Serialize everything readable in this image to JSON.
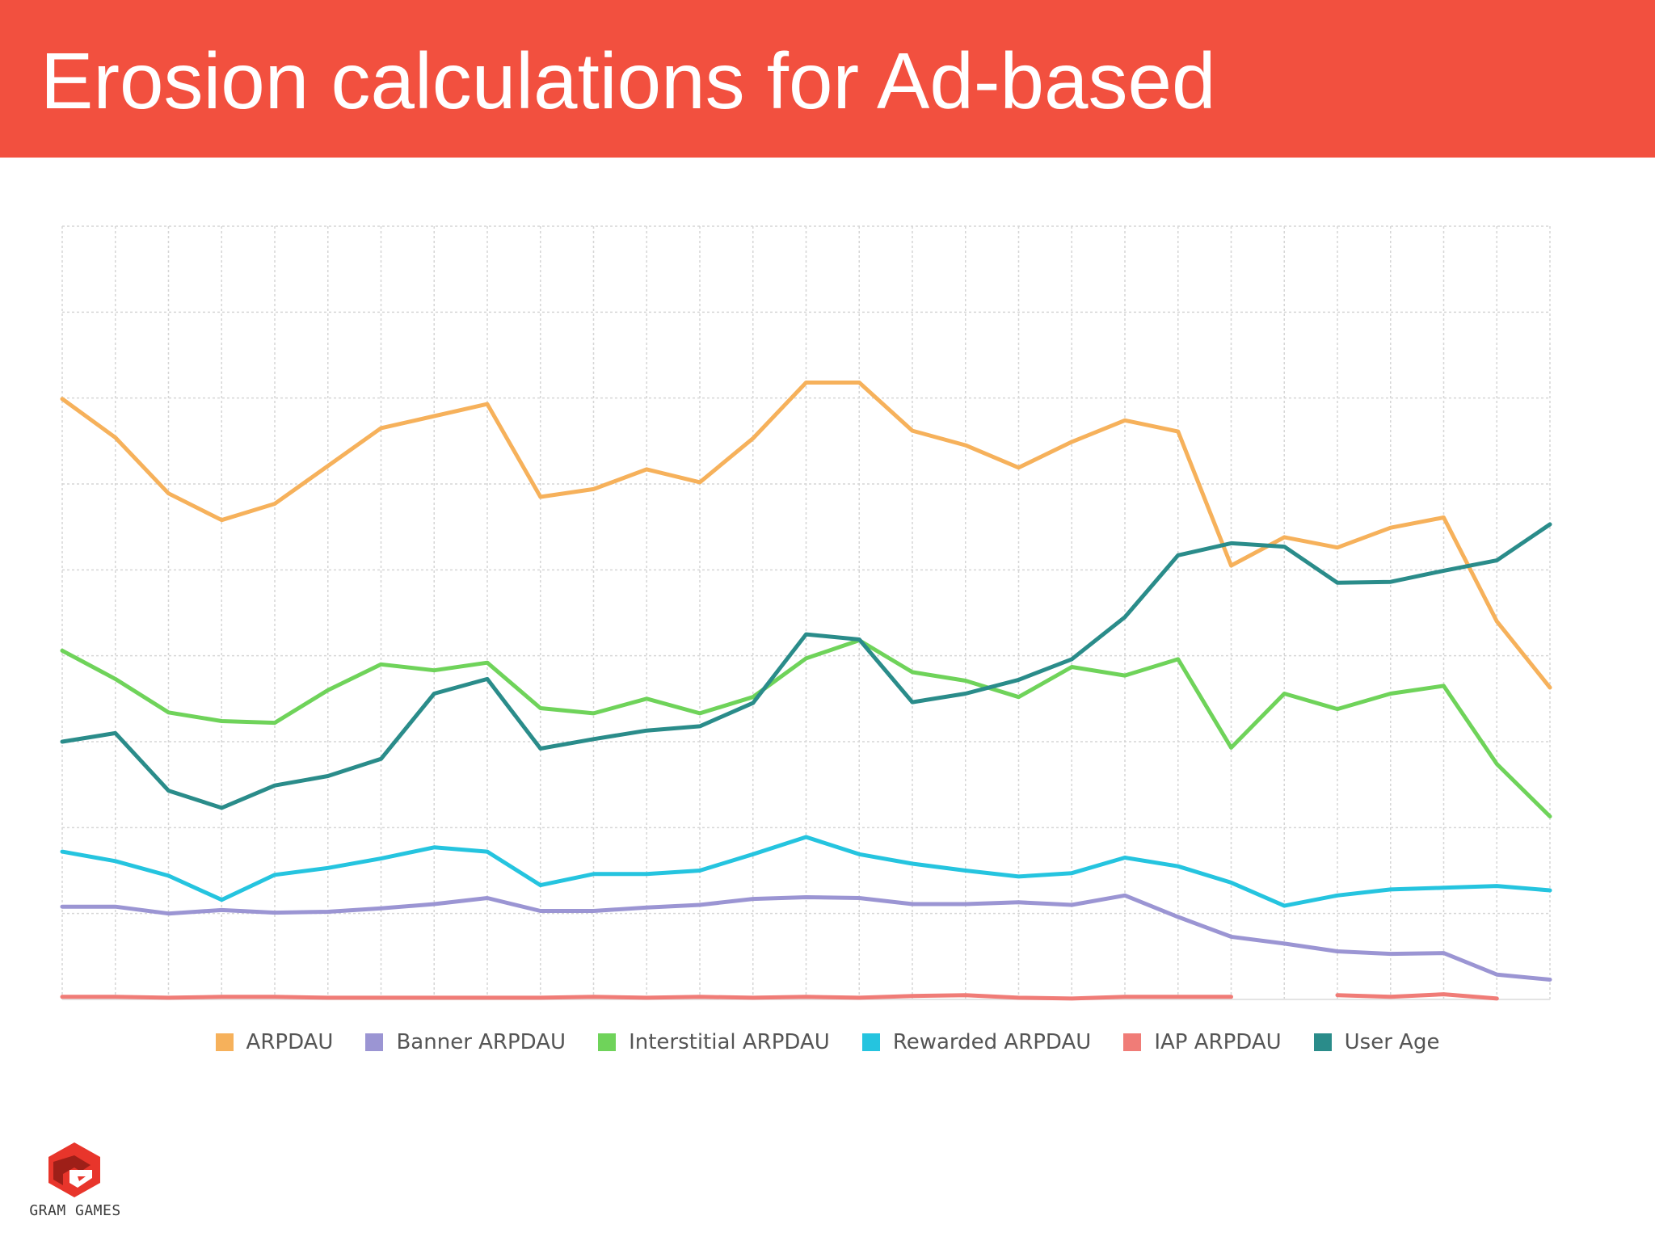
{
  "slide": {
    "title": "Erosion calculations for Ad-based"
  },
  "logo": {
    "text": "GRAM GAMES",
    "icon": "gram-games-logo-icon",
    "color": "#e8352b"
  },
  "colors": {
    "title_bar": "#f2503f",
    "grid": "#d6d6d6"
  },
  "chart_data": {
    "type": "line",
    "x": [
      1,
      2,
      3,
      4,
      5,
      6,
      7,
      8,
      9,
      10,
      11,
      12,
      13,
      14,
      15,
      16,
      17,
      18,
      19,
      20,
      21,
      22,
      23,
      24,
      25,
      26,
      27,
      28,
      29
    ],
    "ylim": [
      0,
      9
    ],
    "grid": true,
    "legend_position": "bottom",
    "series": [
      {
        "name": "ARPDAU",
        "color": "#f6b15b",
        "values": [
          6.99,
          6.54,
          5.89,
          5.58,
          5.77,
          6.21,
          6.65,
          6.79,
          6.93,
          5.85,
          5.94,
          6.17,
          6.02,
          6.53,
          7.18,
          7.18,
          6.62,
          6.45,
          6.19,
          6.49,
          6.74,
          6.61,
          5.05,
          5.38,
          5.26,
          5.49,
          5.61,
          4.4,
          3.63
        ]
      },
      {
        "name": "Banner ARPDAU",
        "color": "#9b95d3",
        "values": [
          1.08,
          1.08,
          1.0,
          1.04,
          1.01,
          1.02,
          1.06,
          1.11,
          1.18,
          1.03,
          1.03,
          1.07,
          1.1,
          1.17,
          1.19,
          1.18,
          1.11,
          1.11,
          1.13,
          1.1,
          1.21,
          0.96,
          0.73,
          0.65,
          0.56,
          0.53,
          0.54,
          0.29,
          0.23
        ]
      },
      {
        "name": "Interstitial ARPDAU",
        "color": "#6fd35a",
        "values": [
          4.06,
          3.73,
          3.34,
          3.24,
          3.22,
          3.6,
          3.9,
          3.83,
          3.92,
          3.39,
          3.33,
          3.5,
          3.33,
          3.52,
          3.97,
          4.18,
          3.81,
          3.71,
          3.52,
          3.87,
          3.77,
          3.96,
          2.93,
          3.56,
          3.38,
          3.56,
          3.65,
          2.74,
          2.13
        ]
      },
      {
        "name": "Rewarded ARPDAU",
        "color": "#25c4df",
        "values": [
          1.72,
          1.61,
          1.44,
          1.16,
          1.45,
          1.53,
          1.64,
          1.77,
          1.72,
          1.33,
          1.46,
          1.46,
          1.5,
          1.69,
          1.89,
          1.69,
          1.58,
          1.5,
          1.43,
          1.47,
          1.65,
          1.55,
          1.36,
          1.09,
          1.21,
          1.28,
          1.3,
          1.32,
          1.27
        ]
      },
      {
        "name": "IAP ARPDAU",
        "color": "#f07c77",
        "values": [
          0.03,
          0.03,
          0.02,
          0.03,
          0.03,
          0.02,
          0.02,
          0.02,
          0.02,
          0.02,
          0.03,
          0.02,
          0.03,
          0.02,
          0.03,
          0.02,
          0.04,
          0.05,
          0.02,
          0.01,
          0.03,
          0.03,
          0.03,
          null,
          0.05,
          0.03,
          0.06,
          0.01,
          null
        ]
      },
      {
        "name": "User Age",
        "color": "#2a8c8a",
        "values": [
          3.0,
          3.1,
          2.43,
          2.23,
          2.49,
          2.6,
          2.8,
          3.56,
          3.73,
          2.92,
          3.03,
          3.13,
          3.18,
          3.45,
          4.25,
          4.19,
          3.46,
          3.56,
          3.72,
          3.96,
          4.45,
          5.17,
          5.31,
          5.27,
          4.85,
          4.86,
          4.99,
          5.11,
          5.53
        ]
      }
    ]
  }
}
